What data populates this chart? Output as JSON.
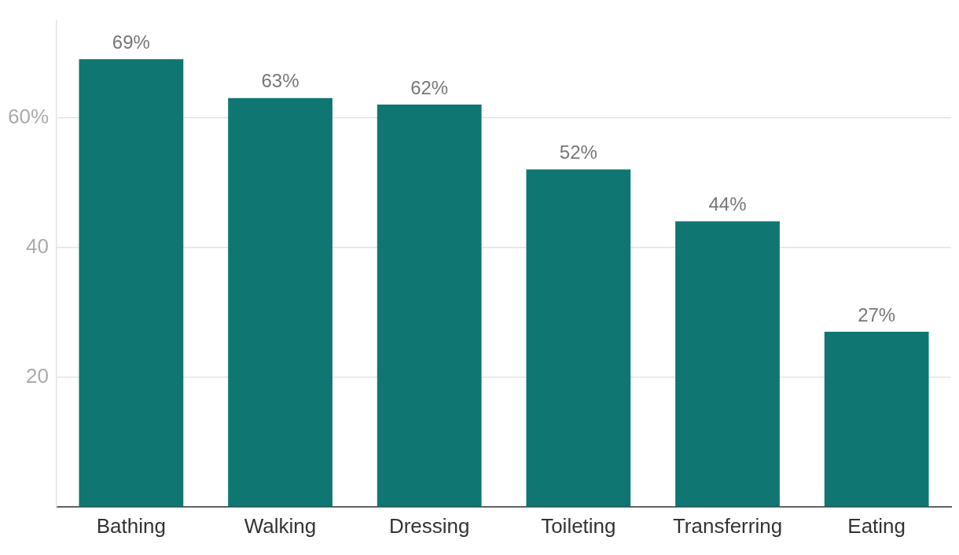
{
  "chart_data": {
    "type": "bar",
    "categories": [
      "Bathing",
      "Walking",
      "Dressing",
      "Toileting",
      "Transferring",
      "Eating"
    ],
    "values": [
      69,
      63,
      62,
      52,
      44,
      27
    ],
    "value_labels": [
      "69%",
      "63%",
      "62%",
      "52%",
      "44%",
      "27%"
    ],
    "color": "#107672",
    "ylim": [
      0,
      75
    ],
    "yticks": [
      20,
      40,
      {
        "value": 60,
        "label": "60%"
      }
    ],
    "grid": "y",
    "legend": false
  }
}
